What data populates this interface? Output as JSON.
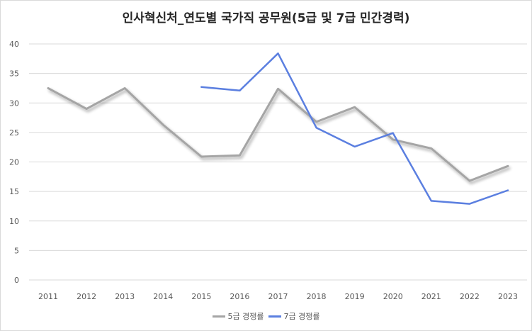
{
  "chart_data": {
    "type": "line",
    "title": "인사혁신처_연도별 국가직 공무원(5급 및 7급 민간경력)",
    "categories": [
      "2011",
      "2012",
      "2013",
      "2014",
      "2015",
      "2016",
      "2017",
      "2018",
      "2019",
      "2020",
      "2021",
      "2022",
      "2023"
    ],
    "ylim": [
      0,
      40
    ],
    "yticks": [
      0,
      5,
      10,
      15,
      20,
      25,
      30,
      35,
      40
    ],
    "grid": true,
    "legend_position": "bottom",
    "series": [
      {
        "name": "5급 경쟁률",
        "color": "#a5a5a5",
        "values": [
          32.5,
          29.0,
          32.5,
          26.3,
          20.9,
          21.1,
          32.4,
          26.8,
          29.3,
          23.8,
          22.3,
          16.8,
          19.3
        ]
      },
      {
        "name": "7급 경쟁률",
        "color": "#5b7fe0",
        "values": [
          null,
          null,
          null,
          null,
          32.7,
          32.1,
          38.4,
          25.8,
          22.6,
          24.9,
          13.4,
          12.9,
          15.2
        ]
      }
    ]
  }
}
